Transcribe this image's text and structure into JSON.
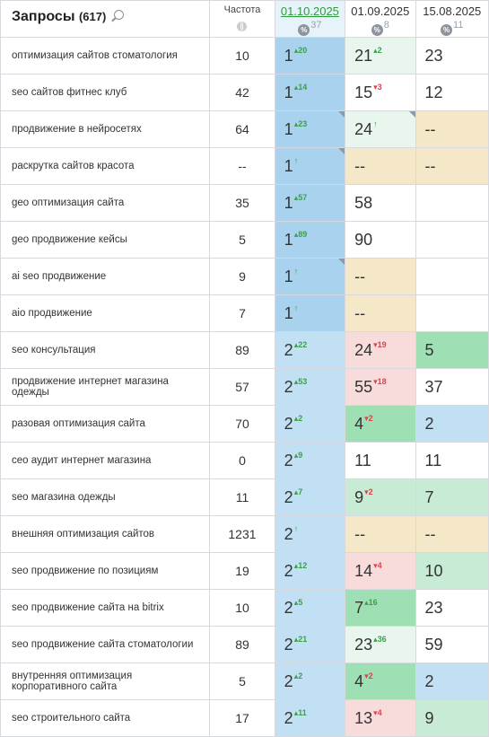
{
  "header": {
    "query_title": "Запросы",
    "query_count": "(617)",
    "freq_title": "Частота",
    "dates": [
      {
        "label": "01.10.2025",
        "pct": "37",
        "active": true
      },
      {
        "label": "01.09.2025",
        "pct": "8",
        "active": false
      },
      {
        "label": "15.08.2025",
        "pct": "11",
        "active": false
      }
    ],
    "pct_symbol": "%"
  },
  "colors": {
    "blue-dark": "#a9d2ef",
    "blue": "#c2e0f4",
    "green-light": "#e8f6ee",
    "green-mid": "#c8ebd5",
    "green": "#9fdfb4",
    "yellow": "#f5e8c8",
    "pink": "#f8dcdc",
    "white": "#ffffff",
    "up": "#3aa04a",
    "down": "#d9434e",
    "active_date": "#2e9b3a"
  },
  "rows": [
    {
      "query": "оптимизация сайтов стоматология",
      "freq": "10",
      "pos": [
        {
          "v": "1",
          "ch": "20",
          "dir": "up",
          "bg": "blue-dark"
        },
        {
          "v": "21",
          "ch": "2",
          "dir": "up",
          "bg": "green-light"
        },
        {
          "v": "23",
          "ch": "",
          "dir": "",
          "bg": "white"
        }
      ]
    },
    {
      "query": "seo сайтов фитнес клуб",
      "freq": "42",
      "pos": [
        {
          "v": "1",
          "ch": "14",
          "dir": "up",
          "bg": "blue-dark"
        },
        {
          "v": "15",
          "ch": "3",
          "dir": "down",
          "bg": "white"
        },
        {
          "v": "12",
          "ch": "",
          "dir": "",
          "bg": "white"
        }
      ]
    },
    {
      "query": "продвижение в нейросетях",
      "freq": "64",
      "pos": [
        {
          "v": "1",
          "ch": "23",
          "dir": "up",
          "bg": "blue-dark",
          "flag": true
        },
        {
          "v": "24",
          "ch": "↑",
          "dir": "up",
          "bg": "green-light",
          "flag": true
        },
        {
          "v": "--",
          "ch": "",
          "dir": "",
          "bg": "yellow"
        }
      ]
    },
    {
      "query": "раскрутка сайтов красота",
      "freq": "--",
      "pos": [
        {
          "v": "1",
          "ch": "↑",
          "dir": "up",
          "bg": "blue-dark",
          "flag": true
        },
        {
          "v": "--",
          "ch": "",
          "dir": "",
          "bg": "yellow"
        },
        {
          "v": "--",
          "ch": "",
          "dir": "",
          "bg": "yellow"
        }
      ]
    },
    {
      "query": "geo оптимизация сайта",
      "freq": "35",
      "pos": [
        {
          "v": "1",
          "ch": "57",
          "dir": "up",
          "bg": "blue-dark"
        },
        {
          "v": "58",
          "ch": "",
          "dir": "",
          "bg": "white"
        },
        {
          "v": "",
          "ch": "",
          "dir": "",
          "bg": "white"
        }
      ]
    },
    {
      "query": "geo продвижение кейсы",
      "freq": "5",
      "pos": [
        {
          "v": "1",
          "ch": "89",
          "dir": "up",
          "bg": "blue-dark"
        },
        {
          "v": "90",
          "ch": "",
          "dir": "",
          "bg": "white"
        },
        {
          "v": "",
          "ch": "",
          "dir": "",
          "bg": "white"
        }
      ]
    },
    {
      "query": "ai seo продвижение",
      "freq": "9",
      "pos": [
        {
          "v": "1",
          "ch": "↑",
          "dir": "up",
          "bg": "blue-dark",
          "flag": true
        },
        {
          "v": "--",
          "ch": "",
          "dir": "",
          "bg": "yellow"
        },
        {
          "v": "",
          "ch": "",
          "dir": "",
          "bg": "white"
        }
      ]
    },
    {
      "query": "aio продвижение",
      "freq": "7",
      "pos": [
        {
          "v": "1",
          "ch": "↑",
          "dir": "up",
          "bg": "blue-dark"
        },
        {
          "v": "--",
          "ch": "",
          "dir": "",
          "bg": "yellow"
        },
        {
          "v": "",
          "ch": "",
          "dir": "",
          "bg": "white"
        }
      ]
    },
    {
      "query": "seo консультация",
      "freq": "89",
      "pos": [
        {
          "v": "2",
          "ch": "22",
          "dir": "up",
          "bg": "blue"
        },
        {
          "v": "24",
          "ch": "19",
          "dir": "down",
          "bg": "pink"
        },
        {
          "v": "5",
          "ch": "",
          "dir": "",
          "bg": "green"
        }
      ]
    },
    {
      "query": "продвижение интернет магазина одежды",
      "freq": "57",
      "pos": [
        {
          "v": "2",
          "ch": "53",
          "dir": "up",
          "bg": "blue"
        },
        {
          "v": "55",
          "ch": "18",
          "dir": "down",
          "bg": "pink"
        },
        {
          "v": "37",
          "ch": "",
          "dir": "",
          "bg": "white"
        }
      ]
    },
    {
      "query": "разовая оптимизация сайта",
      "freq": "70",
      "pos": [
        {
          "v": "2",
          "ch": "2",
          "dir": "up",
          "bg": "blue"
        },
        {
          "v": "4",
          "ch": "2",
          "dir": "down",
          "bg": "green"
        },
        {
          "v": "2",
          "ch": "",
          "dir": "",
          "bg": "blue"
        }
      ]
    },
    {
      "query": "сео аудит интернет магазина",
      "freq": "0",
      "pos": [
        {
          "v": "2",
          "ch": "9",
          "dir": "up",
          "bg": "blue"
        },
        {
          "v": "11",
          "ch": "",
          "dir": "",
          "bg": "white"
        },
        {
          "v": "11",
          "ch": "",
          "dir": "",
          "bg": "white"
        }
      ]
    },
    {
      "query": "seo магазина одежды",
      "freq": "11",
      "pos": [
        {
          "v": "2",
          "ch": "7",
          "dir": "up",
          "bg": "blue"
        },
        {
          "v": "9",
          "ch": "2",
          "dir": "down",
          "bg": "green-mid"
        },
        {
          "v": "7",
          "ch": "",
          "dir": "",
          "bg": "green-mid"
        }
      ]
    },
    {
      "query": "внешняя оптимизация сайтов",
      "freq": "1231",
      "pos": [
        {
          "v": "2",
          "ch": "↑",
          "dir": "up",
          "bg": "blue"
        },
        {
          "v": "--",
          "ch": "",
          "dir": "",
          "bg": "yellow"
        },
        {
          "v": "--",
          "ch": "",
          "dir": "",
          "bg": "yellow"
        }
      ]
    },
    {
      "query": "seo продвижение по позициям",
      "freq": "19",
      "pos": [
        {
          "v": "2",
          "ch": "12",
          "dir": "up",
          "bg": "blue"
        },
        {
          "v": "14",
          "ch": "4",
          "dir": "down",
          "bg": "pink"
        },
        {
          "v": "10",
          "ch": "",
          "dir": "",
          "bg": "green-mid"
        }
      ]
    },
    {
      "query": "seo продвижение сайта на bitrix",
      "freq": "10",
      "pos": [
        {
          "v": "2",
          "ch": "5",
          "dir": "up",
          "bg": "blue"
        },
        {
          "v": "7",
          "ch": "16",
          "dir": "up",
          "bg": "green"
        },
        {
          "v": "23",
          "ch": "",
          "dir": "",
          "bg": "white"
        }
      ]
    },
    {
      "query": "seo продвижение сайта стоматологии",
      "freq": "89",
      "pos": [
        {
          "v": "2",
          "ch": "21",
          "dir": "up",
          "bg": "blue"
        },
        {
          "v": "23",
          "ch": "36",
          "dir": "up",
          "bg": "green-light"
        },
        {
          "v": "59",
          "ch": "",
          "dir": "",
          "bg": "white"
        }
      ]
    },
    {
      "query": "внутренняя оптимизация корпоративного сайта",
      "freq": "5",
      "pos": [
        {
          "v": "2",
          "ch": "2",
          "dir": "up",
          "bg": "blue"
        },
        {
          "v": "4",
          "ch": "2",
          "dir": "down",
          "bg": "green"
        },
        {
          "v": "2",
          "ch": "",
          "dir": "",
          "bg": "blue"
        }
      ]
    },
    {
      "query": "seo строительного сайта",
      "freq": "17",
      "pos": [
        {
          "v": "2",
          "ch": "11",
          "dir": "up",
          "bg": "blue"
        },
        {
          "v": "13",
          "ch": "4",
          "dir": "down",
          "bg": "pink"
        },
        {
          "v": "9",
          "ch": "",
          "dir": "",
          "bg": "green-mid"
        }
      ]
    }
  ]
}
